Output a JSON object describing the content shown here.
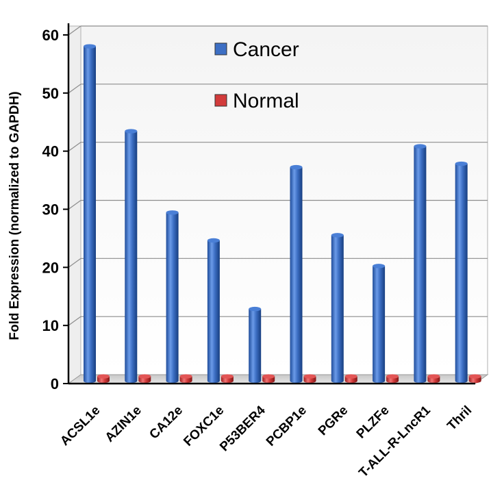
{
  "chart_data": {
    "type": "bar",
    "title": "",
    "xlabel": "",
    "ylabel": "Fold Expression (normalized to GAPDH)",
    "ylim": [
      0,
      60
    ],
    "yticks": [
      "0",
      "10",
      "20",
      "30",
      "40",
      "50",
      "60"
    ],
    "categories": [
      "ACSL1e",
      "AZIN1e",
      "CA12e",
      "FOXC1e",
      "P53BER4",
      "PCBP1e",
      "PGRe",
      "PLZFe",
      "T-ALL-R-LncR1",
      "Thril"
    ],
    "series": [
      {
        "name": "Cancer",
        "color": "#3d6fc4",
        "values": [
          57.8,
          43.2,
          29.2,
          24.4,
          12.6,
          37.0,
          25.3,
          20.0,
          40.6,
          37.6
        ]
      },
      {
        "name": "Normal",
        "color": "#d23b3b",
        "values": [
          1,
          1,
          1,
          1,
          1,
          1,
          1,
          1,
          1,
          1
        ]
      }
    ],
    "grid": true,
    "legend_position": "top-center",
    "style": "3d-cylinder"
  }
}
